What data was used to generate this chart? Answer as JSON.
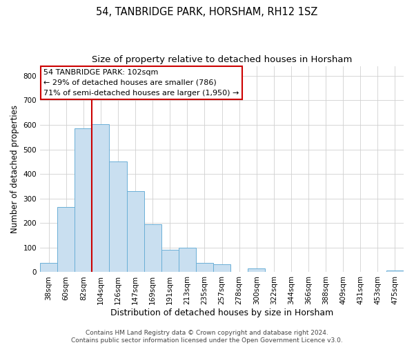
{
  "title": "54, TANBRIDGE PARK, HORSHAM, RH12 1SZ",
  "subtitle": "Size of property relative to detached houses in Horsham",
  "xlabel": "Distribution of detached houses by size in Horsham",
  "ylabel": "Number of detached properties",
  "bar_labels": [
    "38sqm",
    "60sqm",
    "82sqm",
    "104sqm",
    "126sqm",
    "147sqm",
    "169sqm",
    "191sqm",
    "213sqm",
    "235sqm",
    "257sqm",
    "278sqm",
    "300sqm",
    "322sqm",
    "344sqm",
    "366sqm",
    "388sqm",
    "409sqm",
    "431sqm",
    "453sqm",
    "475sqm"
  ],
  "bar_heights": [
    38,
    265,
    585,
    604,
    452,
    330,
    196,
    90,
    101,
    38,
    32,
    0,
    14,
    0,
    0,
    0,
    0,
    0,
    0,
    0,
    8
  ],
  "bar_color": "#c9dff0",
  "bar_edge_color": "#6aafd6",
  "vline_index": 3,
  "vline_color": "#cc0000",
  "ylim": [
    0,
    840
  ],
  "yticks": [
    0,
    100,
    200,
    300,
    400,
    500,
    600,
    700,
    800
  ],
  "annotation_title": "54 TANBRIDGE PARK: 102sqm",
  "annotation_line1": "← 29% of detached houses are smaller (786)",
  "annotation_line2": "71% of semi-detached houses are larger (1,950) →",
  "annotation_box_color": "#cc0000",
  "footer_line1": "Contains HM Land Registry data © Crown copyright and database right 2024.",
  "footer_line2": "Contains public sector information licensed under the Open Government Licence v3.0.",
  "grid_color": "#d0d0d0",
  "background_color": "#ffffff",
  "title_fontsize": 10.5,
  "subtitle_fontsize": 9.5,
  "xlabel_fontsize": 9,
  "ylabel_fontsize": 8.5,
  "tick_fontsize": 7.5,
  "annotation_fontsize": 8,
  "footer_fontsize": 6.5
}
